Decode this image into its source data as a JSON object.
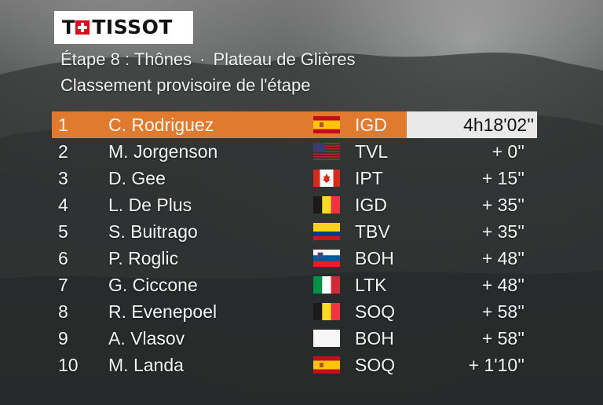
{
  "logo": {
    "text": "TISSOT"
  },
  "header": {
    "stage": "Étape 8 : Thônes",
    "separator": "·",
    "destination": "Plateau de Glières",
    "classification": "Classement provisoire de l'étape"
  },
  "colors": {
    "leader_band": "#e07a2e",
    "leader_time_box": "#e9e9e9",
    "logo_red": "#e2001a"
  },
  "standings": [
    {
      "pos": "1",
      "name": "C. Rodriguez",
      "flag": "flag-spain-icon",
      "team": "IGD",
      "time": "4h18'02''"
    },
    {
      "pos": "2",
      "name": "M. Jorgenson",
      "flag": "flag-usa-icon",
      "team": "TVL",
      "time": "+ 0''"
    },
    {
      "pos": "3",
      "name": "D. Gee",
      "flag": "flag-canada-icon",
      "team": "IPT",
      "time": "+ 15''"
    },
    {
      "pos": "4",
      "name": "L. De Plus",
      "flag": "flag-belgium-icon",
      "team": "IGD",
      "time": "+ 35''"
    },
    {
      "pos": "5",
      "name": "S. Buitrago",
      "flag": "flag-colombia-icon",
      "team": "TBV",
      "time": "+ 35''"
    },
    {
      "pos": "6",
      "name": "P. Roglic",
      "flag": "flag-slovenia-icon",
      "team": "BOH",
      "time": "+ 48''"
    },
    {
      "pos": "7",
      "name": "G. Ciccone",
      "flag": "flag-italy-icon",
      "team": "LTK",
      "time": "+ 48''"
    },
    {
      "pos": "8",
      "name": "R. Evenepoel",
      "flag": "flag-belgium-icon",
      "team": "SOQ",
      "time": "+ 58''"
    },
    {
      "pos": "9",
      "name": "A. Vlasov",
      "flag": "flag-white-icon",
      "team": "BOH",
      "time": "+ 58''"
    },
    {
      "pos": "10",
      "name": "M. Landa",
      "flag": "flag-spain-icon",
      "team": "SOQ",
      "time": "+ 1'10''"
    }
  ]
}
